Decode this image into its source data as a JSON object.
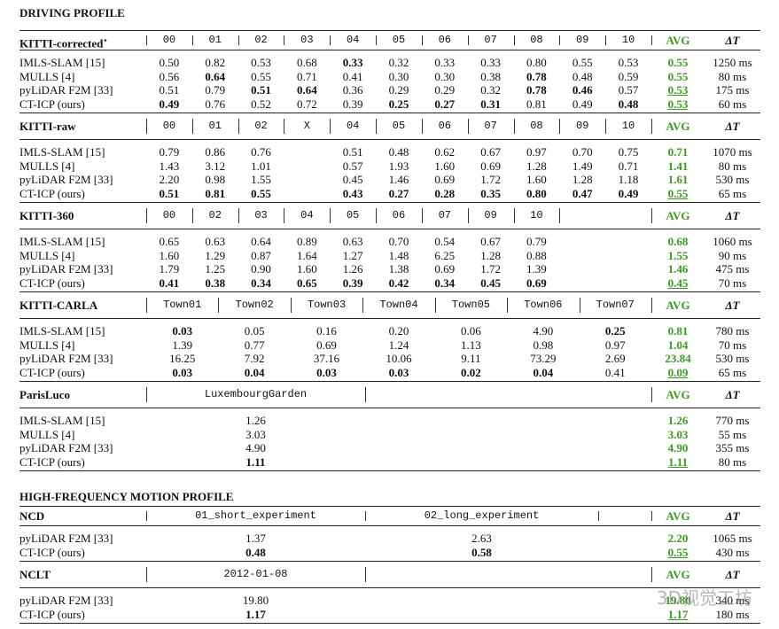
{
  "avg_color": "#3a9a1f",
  "watermark": "3D视觉工坊",
  "sections": [
    {
      "title": "DRIVING PROFILE",
      "blocks": [
        {
          "name": "KITTI-corrected",
          "name_mark": "⋆",
          "columns": [
            "00",
            "01",
            "02",
            "03",
            "04",
            "05",
            "06",
            "07",
            "08",
            "09",
            "10"
          ],
          "avg_label": "AVG",
          "dt_label": "ΔT",
          "rows": [
            {
              "method": "IMLS-SLAM [15]",
              "values": [
                "0.50",
                "0.82",
                "0.53",
                "0.68",
                "0.33",
                "0.32",
                "0.33",
                "0.33",
                "0.80",
                "0.55",
                "0.53"
              ],
              "bold": [
                4
              ],
              "avg": "0.55",
              "avg_best": false,
              "dt": "1250 ms"
            },
            {
              "method": "MULLS [4]",
              "values": [
                "0.56",
                "0.64",
                "0.55",
                "0.71",
                "0.41",
                "0.30",
                "0.30",
                "0.38",
                "0.78",
                "0.48",
                "0.59"
              ],
              "bold": [
                1,
                8
              ],
              "avg": "0.55",
              "avg_best": false,
              "dt": "80 ms"
            },
            {
              "method": "pyLiDAR F2M [33]",
              "values": [
                "0.51",
                "0.79",
                "0.51",
                "0.64",
                "0.36",
                "0.29",
                "0.29",
                "0.32",
                "0.78",
                "0.46",
                "0.57"
              ],
              "bold": [
                2,
                3,
                8,
                9
              ],
              "avg": "0.53",
              "avg_best": true,
              "dt": "175 ms"
            },
            {
              "method": "CT-ICP (ours)",
              "values": [
                "0.49",
                "0.76",
                "0.52",
                "0.72",
                "0.39",
                "0.25",
                "0.27",
                "0.31",
                "0.81",
                "0.49",
                "0.48"
              ],
              "bold": [
                0,
                5,
                6,
                7,
                10
              ],
              "avg": "0.53",
              "avg_best": true,
              "dt": "60 ms"
            }
          ]
        },
        {
          "name": "KITTI-raw",
          "columns": [
            "00",
            "01",
            "02",
            "X",
            "04",
            "05",
            "06",
            "07",
            "08",
            "09",
            "10"
          ],
          "avg_label": "AVG",
          "dt_label": "ΔT",
          "rows": [
            {
              "method": "IMLS-SLAM [15]",
              "values": [
                "0.79",
                "0.86",
                "0.76",
                null,
                "0.51",
                "0.48",
                "0.62",
                "0.67",
                "0.97",
                "0.70",
                "0.75"
              ],
              "bold": [],
              "avg": "0.71",
              "avg_best": false,
              "dt": "1070 ms"
            },
            {
              "method": "MULLS [4]",
              "values": [
                "1.43",
                "3.12",
                "1.01",
                null,
                "0.57",
                "1.93",
                "1.60",
                "0.69",
                "1.28",
                "1.49",
                "0.71"
              ],
              "bold": [],
              "avg": "1.41",
              "avg_best": false,
              "dt": "80 ms"
            },
            {
              "method": "pyLiDAR F2M [33]",
              "values": [
                "2.20",
                "0.98",
                "1.55",
                null,
                "0.45",
                "1.46",
                "0.69",
                "1.72",
                "1.60",
                "1.28",
                "1.18"
              ],
              "bold": [],
              "avg": "1.61",
              "avg_best": false,
              "dt": "530 ms"
            },
            {
              "method": "CT-ICP (ours)",
              "values": [
                "0.51",
                "0.81",
                "0.55",
                null,
                "0.43",
                "0.27",
                "0.28",
                "0.35",
                "0.80",
                "0.47",
                "0.49"
              ],
              "bold": [
                0,
                1,
                2,
                4,
                5,
                6,
                7,
                8,
                9,
                10
              ],
              "avg": "0.55",
              "avg_best": true,
              "dt": "65 ms"
            }
          ]
        },
        {
          "name": "KITTI-360",
          "columns": [
            "00",
            "02",
            "03",
            "04",
            "05",
            "06",
            "07",
            "09",
            "10"
          ],
          "avg_label": "AVG",
          "dt_label": "ΔT",
          "rows": [
            {
              "method": "IMLS-SLAM [15]",
              "values": [
                "0.65",
                "0.63",
                "0.64",
                "0.89",
                "0.63",
                "0.70",
                "0.54",
                "0.67",
                "0.79"
              ],
              "bold": [],
              "avg": "0.68",
              "avg_best": false,
              "dt": "1060 ms"
            },
            {
              "method": "MULLS [4]",
              "values": [
                "1.60",
                "1.29",
                "0.87",
                "1.64",
                "1.27",
                "1.48",
                "6.25",
                "1.28",
                "0.88"
              ],
              "bold": [],
              "avg": "1.55",
              "avg_best": false,
              "dt": "90 ms"
            },
            {
              "method": "pyLiDAR F2M [33]",
              "values": [
                "1.79",
                "1.25",
                "0.90",
                "1.60",
                "1.26",
                "1.38",
                "0.69",
                "1.72",
                "1.39"
              ],
              "bold": [],
              "avg": "1.46",
              "avg_best": false,
              "dt": "475 ms"
            },
            {
              "method": "CT-ICP (ours)",
              "values": [
                "0.41",
                "0.38",
                "0.34",
                "0.65",
                "0.39",
                "0.42",
                "0.34",
                "0.45",
                "0.69"
              ],
              "bold": [
                0,
                1,
                2,
                3,
                4,
                5,
                6,
                7,
                8
              ],
              "avg": "0.45",
              "avg_best": true,
              "dt": "70 ms"
            }
          ]
        },
        {
          "name": "KITTI-CARLA",
          "columns": [
            "Town01",
            "Town02",
            "Town03",
            "Town04",
            "Town05",
            "Town06",
            "Town07"
          ],
          "avg_label": "AVG",
          "dt_label": "ΔT",
          "rows": [
            {
              "method": "IMLS-SLAM [15]",
              "values": [
                "0.03",
                "0.05",
                "0.16",
                "0.20",
                "0.06",
                "4.90",
                "0.25"
              ],
              "bold": [
                0,
                6
              ],
              "avg": "0.81",
              "avg_best": false,
              "dt": "780 ms"
            },
            {
              "method": "MULLS [4]",
              "values": [
                "1.39",
                "0.77",
                "0.69",
                "1.24",
                "1.13",
                "0.98",
                "0.97"
              ],
              "bold": [],
              "avg": "1.04",
              "avg_best": false,
              "dt": "70 ms"
            },
            {
              "method": "pyLiDAR F2M [33]",
              "values": [
                "16.25",
                "7.92",
                "37.16",
                "10.06",
                "9.11",
                "73.29",
                "2.69"
              ],
              "bold": [],
              "avg": "23.84",
              "avg_best": false,
              "dt": "530 ms"
            },
            {
              "method": "CT-ICP (ours)",
              "values": [
                "0.03",
                "0.04",
                "0.03",
                "0.03",
                "0.02",
                "0.04",
                "0.41"
              ],
              "bold": [
                0,
                1,
                2,
                3,
                4,
                5
              ],
              "avg": "0.09",
              "avg_best": true,
              "dt": "65 ms"
            }
          ]
        },
        {
          "name": "ParisLuco",
          "columns": [
            "LuxembourgGarden"
          ],
          "avg_label": "AVG",
          "dt_label": "ΔT",
          "rows": [
            {
              "method": "IMLS-SLAM [15]",
              "values": [
                "1.26"
              ],
              "bold": [],
              "avg": "1.26",
              "avg_best": false,
              "dt": "770 ms"
            },
            {
              "method": "MULLS [4]",
              "values": [
                "3.03"
              ],
              "bold": [],
              "avg": "3.03",
              "avg_best": false,
              "dt": "55 ms"
            },
            {
              "method": "pyLiDAR F2M [33]",
              "values": [
                "4.90"
              ],
              "bold": [],
              "avg": "4.90",
              "avg_best": false,
              "dt": "355 ms"
            },
            {
              "method": "CT-ICP (ours)",
              "values": [
                "1.11"
              ],
              "bold": [
                0
              ],
              "avg": "1.11",
              "avg_best": true,
              "dt": "80 ms"
            }
          ]
        }
      ]
    },
    {
      "title": "HIGH-FREQUENCY MOTION PROFILE",
      "blocks": [
        {
          "name": "NCD",
          "columns": [
            "01_short_experiment",
            "02_long_experiment"
          ],
          "avg_label": "AVG",
          "dt_label": "ΔT",
          "rows": [
            {
              "method": "pyLiDAR F2M [33]",
              "values": [
                "1.37",
                "2.63"
              ],
              "bold": [],
              "avg": "2.20",
              "avg_best": false,
              "dt": "1065 ms"
            },
            {
              "method": "CT-ICP (ours)",
              "values": [
                "0.48",
                "0.58"
              ],
              "bold": [
                0,
                1
              ],
              "avg": "0.55",
              "avg_best": true,
              "dt": "430 ms"
            }
          ]
        },
        {
          "name": "NCLT",
          "columns": [
            "2012-01-08"
          ],
          "avg_label": "AVG",
          "dt_label": "ΔT",
          "rows": [
            {
              "method": "pyLiDAR F2M [33]",
              "values": [
                "19.80"
              ],
              "bold": [],
              "avg": "19.80",
              "avg_best": false,
              "dt": "340 ms"
            },
            {
              "method": "CT-ICP (ours)",
              "values": [
                "1.17"
              ],
              "bold": [
                0
              ],
              "avg": "1.17",
              "avg_best": true,
              "dt": "180 ms"
            }
          ]
        }
      ]
    }
  ]
}
